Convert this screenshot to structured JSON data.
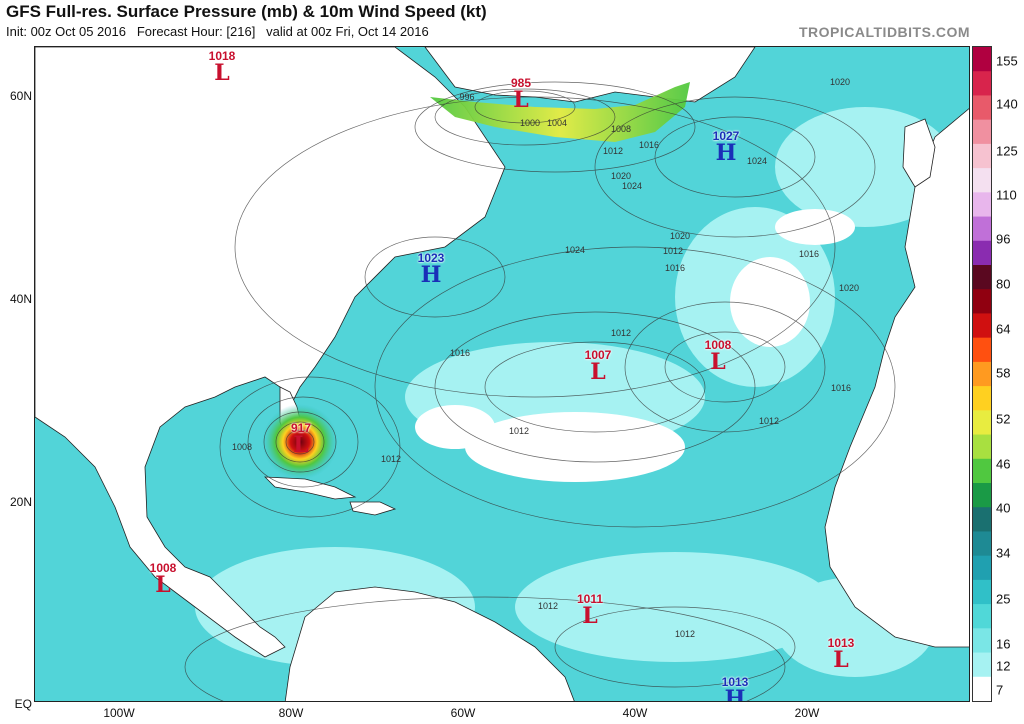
{
  "header": {
    "title": "GFS Full-res. Surface Pressure (mb) & 10m Wind Speed (kt)",
    "init": "Init: 00z Oct 05 2016",
    "forecast_hour": "Forecast Hour: [216]",
    "valid": "valid at 00z Fri, Oct 14 2016",
    "brand": "TROPICALTIDBITS.COM"
  },
  "colorbar": {
    "ticks": [
      "155",
      "140",
      "125",
      "110",
      "96",
      "80",
      "64",
      "58",
      "52",
      "46",
      "40",
      "34",
      "25",
      "16",
      "12",
      "7"
    ],
    "colors": [
      "#b00040",
      "#d8244c",
      "#e85a6a",
      "#f090a0",
      "#f6c2d0",
      "#f4e0f0",
      "#e8b6ec",
      "#c070d8",
      "#8a2cb0",
      "#5a0820",
      "#900010",
      "#d01010",
      "#ff5010",
      "#ff9a20",
      "#ffd020",
      "#e8ec40",
      "#a8e040",
      "#50c840",
      "#1a9a46",
      "#1a7070",
      "#1e8a94",
      "#20a0b0",
      "#30c0c8",
      "#50d8d8",
      "#7ae6e6",
      "#a6f2f2",
      "#ffffff"
    ]
  },
  "axes": {
    "lat_labels": [
      "60N",
      "40N",
      "20N",
      "EQ"
    ],
    "lon_labels": [
      "100W",
      "80W",
      "60W",
      "40W",
      "20W"
    ]
  },
  "systems": [
    {
      "type": "L",
      "pressure": "1018"
    },
    {
      "type": "L",
      "pressure": "985"
    },
    {
      "type": "H",
      "pressure": "1027"
    },
    {
      "type": "H",
      "pressure": "1023"
    },
    {
      "type": "L",
      "pressure": "1007"
    },
    {
      "type": "L",
      "pressure": "1008"
    },
    {
      "type": "L",
      "pressure": "917"
    },
    {
      "type": "L",
      "pressure": "1008"
    },
    {
      "type": "L",
      "pressure": "1011"
    },
    {
      "type": "L",
      "pressure": "1013"
    },
    {
      "type": "H",
      "pressure": "1013"
    }
  ],
  "isobar_labels": [
    "996",
    "1000",
    "1004",
    "1008",
    "1012",
    "1016",
    "1020",
    "1024",
    "1024",
    "1020",
    "1016",
    "1012",
    "1020",
    "1024",
    "1016",
    "1020",
    "1016",
    "1012",
    "1012",
    "1012",
    "1008",
    "1012",
    "1016",
    "1012",
    "1012"
  ]
}
